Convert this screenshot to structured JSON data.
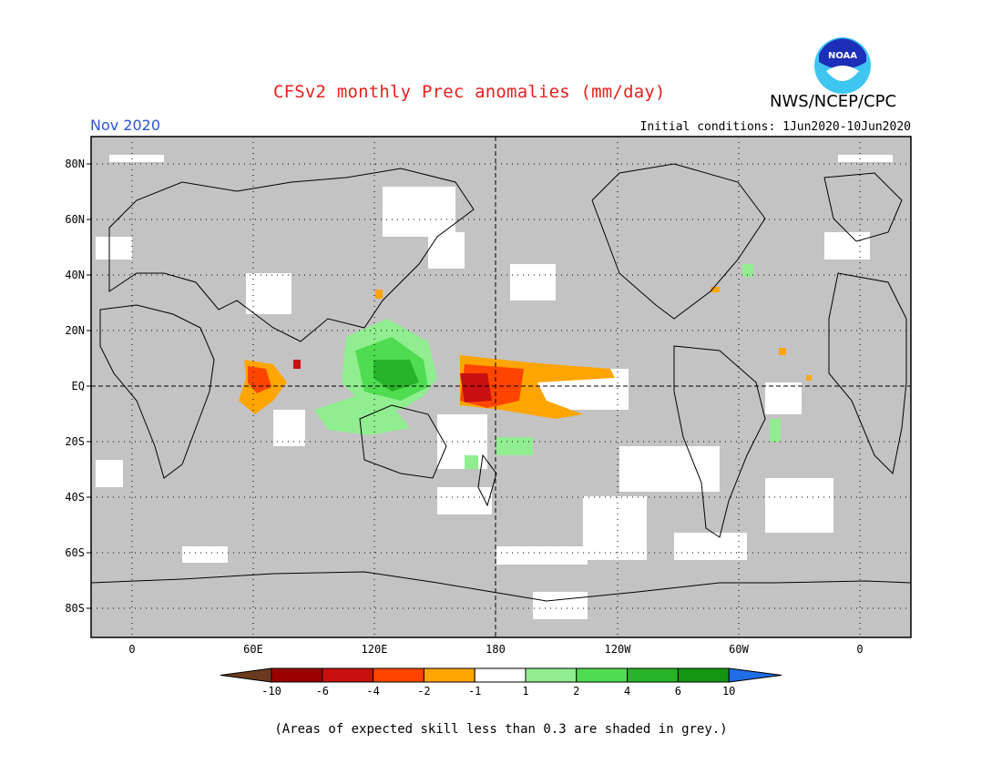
{
  "header": {
    "title": "CFSv2 monthly Prec anomalies (mm/day)",
    "org": "NWS/NCEP/CPC",
    "month": "Nov 2020",
    "initial_conditions": "Initial conditions: 1Jun2020-10Jun2020",
    "logo_text": "NOAA"
  },
  "axes": {
    "lat_labels": [
      "80N",
      "60N",
      "40N",
      "20N",
      "EQ",
      "20S",
      "40S",
      "60S",
      "80S"
    ],
    "lon_labels": [
      "0",
      "60E",
      "120E",
      "180",
      "120W",
      "60W",
      "0"
    ]
  },
  "legend": {
    "labels": [
      "-10",
      "-6",
      "-4",
      "-2",
      "-1",
      "1",
      "2",
      "4",
      "6",
      "10"
    ],
    "colors": [
      "#6b3a1e",
      "#9a0000",
      "#c81010",
      "#ff4500",
      "#ffa500",
      "#ffffff",
      "#90ee90",
      "#50dc50",
      "#28b428",
      "#129612",
      "#1e6ee6"
    ]
  },
  "footnote": "(Areas of expected skill less than 0.3 are shaded in grey.)",
  "colors": {
    "skill_mask": "#c3c3c3",
    "title": "#e8201e",
    "month": "#2d55d6"
  }
}
